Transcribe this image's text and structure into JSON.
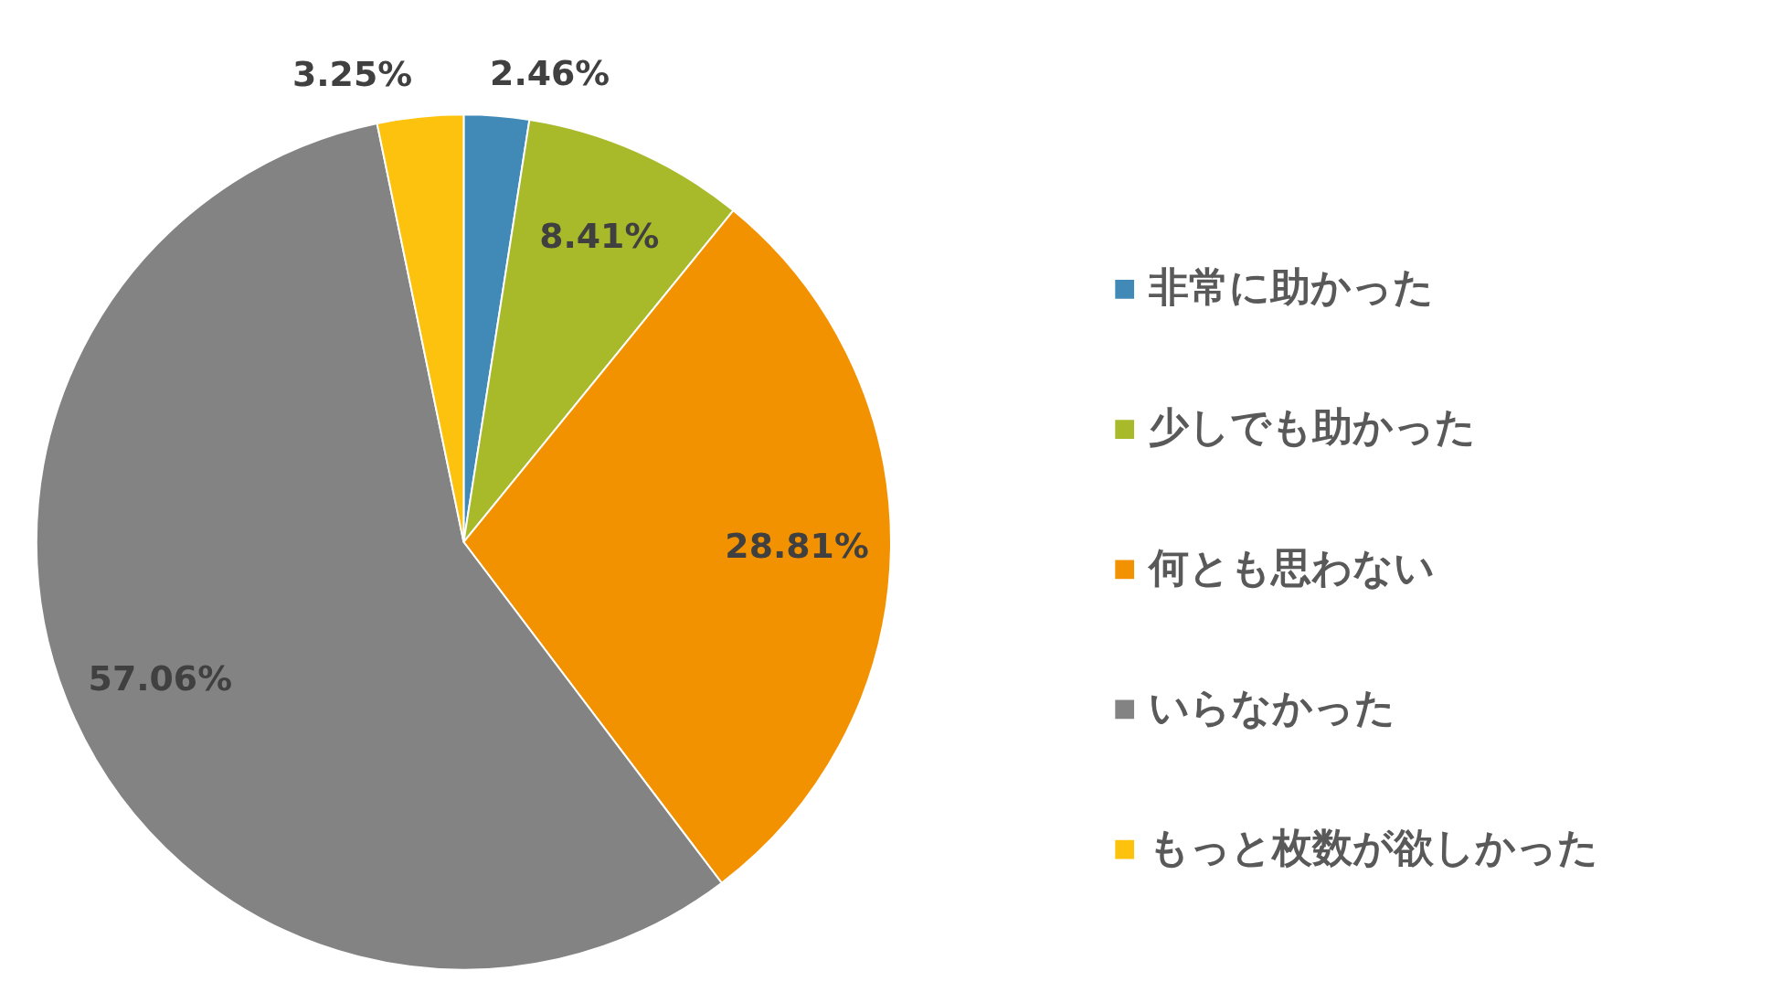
{
  "chart_data": {
    "type": "pie",
    "categories": [
      "非常に助かった",
      "少しでも助かった",
      "何とも思わない",
      "いらなかった",
      "もっと枚数が欲しかった"
    ],
    "values": [
      2.46,
      8.41,
      28.81,
      57.06,
      3.25
    ],
    "colors": [
      "#4189b6",
      "#a8b92a",
      "#f39200",
      "#838383",
      "#fdc20e"
    ],
    "value_labels": [
      "2.46%",
      "8.41%",
      "28.81%",
      "57.06%",
      "3.25%"
    ],
    "legend": "right"
  }
}
